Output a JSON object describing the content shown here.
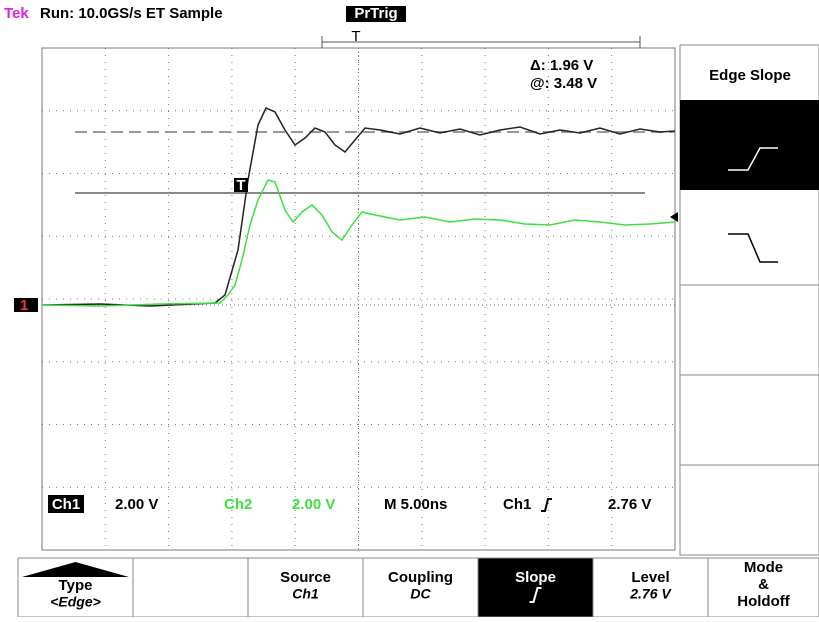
{
  "header": {
    "brand": "Tek",
    "status": "Run: 10.0GS/s ET Sample",
    "trigger_state": "PrTrig"
  },
  "readout": {
    "delta": "Δ: 1.96 V",
    "at": "@: 3.48 V"
  },
  "markers": {
    "trigger": "T",
    "channel1": "1"
  },
  "status_bar": {
    "ch1_label": "Ch1",
    "ch1_scale": "2.00 V",
    "ch2_label": "Ch2",
    "ch2_scale": "2.00 V",
    "timebase": "M 5.00ns",
    "trigger_source": "Ch1",
    "trigger_level": "2.76 V"
  },
  "side_menu": {
    "title": "Edge Slope"
  },
  "bottom_menu": [
    {
      "label": "Type",
      "value": "<Edge>"
    },
    {
      "label": "Source",
      "value": "Ch1"
    },
    {
      "label": "Coupling",
      "value": "DC"
    },
    {
      "label": "Slope"
    },
    {
      "label": "Level",
      "value": "2.76 V"
    },
    {
      "lines": [
        "Mode",
        "&",
        "Holdoff"
      ]
    }
  ]
}
